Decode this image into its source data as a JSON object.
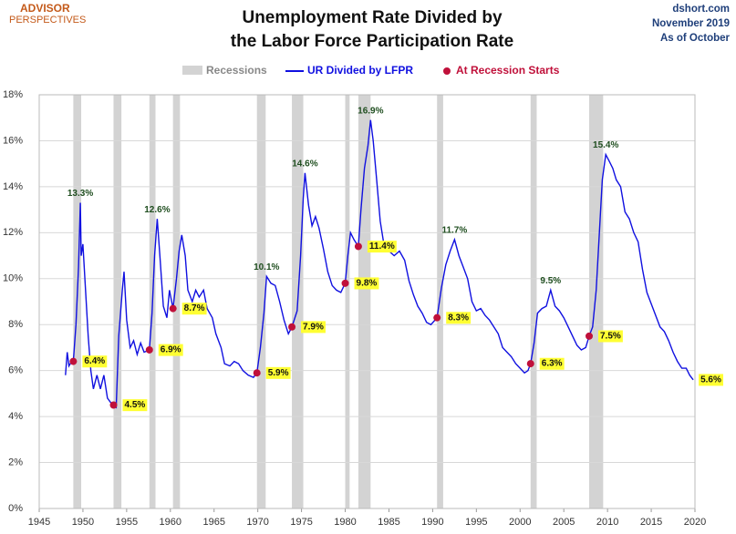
{
  "logo": [
    "ADVISOR",
    "PERSPECTIVES"
  ],
  "source": [
    "dshort.com",
    "November 2019",
    "As of October"
  ],
  "chart_data": {
    "type": "line",
    "title": [
      "Unemployment Rate Divided by",
      "the Labor Force Participation Rate"
    ],
    "xlim": [
      1945,
      2020
    ],
    "xticks": [
      1945,
      1950,
      1955,
      1960,
      1965,
      1970,
      1975,
      1980,
      1985,
      1990,
      1995,
      2000,
      2005,
      2010,
      2015,
      2020
    ],
    "ylim": [
      0,
      18
    ],
    "yticks": [
      {
        "value": 0,
        "label": "0%"
      },
      {
        "value": 2,
        "label": "2%"
      },
      {
        "value": 4,
        "label": "4%"
      },
      {
        "value": 6,
        "label": "6%"
      },
      {
        "value": 8,
        "label": "8%"
      },
      {
        "value": 10,
        "label": "10%"
      },
      {
        "value": 12,
        "label": "12%"
      },
      {
        "value": 14,
        "label": "14%"
      },
      {
        "value": 16,
        "label": "16%"
      },
      {
        "value": 18,
        "label": "18%"
      }
    ],
    "grid": true,
    "recessions": {
      "name": "Recessions",
      "color": "#d3d3d3",
      "periods": [
        [
          1948.9,
          1949.8
        ],
        [
          1953.5,
          1954.4
        ],
        [
          1957.6,
          1958.3
        ],
        [
          1960.3,
          1961.1
        ],
        [
          1969.9,
          1970.9
        ],
        [
          1973.9,
          1975.2
        ],
        [
          1980.0,
          1980.5
        ],
        [
          1981.5,
          1982.9
        ],
        [
          1990.5,
          1991.2
        ],
        [
          2001.2,
          2001.9
        ],
        [
          2007.9,
          2009.5
        ]
      ]
    },
    "series": [
      {
        "name": "UR Divided by LFPR",
        "color": "#1010e0",
        "x": [
          1948.0,
          1948.2,
          1948.4,
          1948.7,
          1948.9,
          1949.2,
          1949.5,
          1949.7,
          1949.8,
          1950.0,
          1950.3,
          1950.6,
          1950.9,
          1951.2,
          1951.6,
          1952.0,
          1952.4,
          1952.8,
          1953.2,
          1953.5,
          1953.8,
          1954.1,
          1954.5,
          1954.7,
          1955.0,
          1955.4,
          1955.8,
          1956.2,
          1956.6,
          1957.0,
          1957.6,
          1957.9,
          1958.2,
          1958.5,
          1958.8,
          1959.2,
          1959.6,
          1959.9,
          1960.3,
          1960.7,
          1961.0,
          1961.3,
          1961.7,
          1962.0,
          1962.5,
          1962.9,
          1963.3,
          1963.8,
          1964.2,
          1964.8,
          1965.2,
          1965.8,
          1966.2,
          1966.8,
          1967.3,
          1967.8,
          1968.3,
          1968.9,
          1969.5,
          1969.9,
          1970.3,
          1970.7,
          1971.0,
          1971.5,
          1972.0,
          1972.5,
          1973.0,
          1973.5,
          1973.9,
          1974.5,
          1974.9,
          1975.2,
          1975.4,
          1975.8,
          1976.2,
          1976.6,
          1977.0,
          1977.5,
          1978.0,
          1978.5,
          1979.0,
          1979.5,
          1980.0,
          1980.3,
          1980.6,
          1981.0,
          1981.5,
          1981.8,
          1982.2,
          1982.6,
          1982.9,
          1983.2,
          1983.6,
          1984.0,
          1984.5,
          1985.0,
          1985.6,
          1986.2,
          1986.8,
          1987.3,
          1987.8,
          1988.3,
          1988.8,
          1989.3,
          1989.8,
          1990.5,
          1991.0,
          1991.5,
          1992.0,
          1992.5,
          1993.0,
          1993.5,
          1994.0,
          1994.5,
          1995.0,
          1995.5,
          1996.0,
          1996.5,
          1997.0,
          1997.5,
          1998.0,
          1998.5,
          1999.0,
          1999.5,
          2000.0,
          2000.5,
          2000.9,
          2001.2,
          2001.6,
          2002.0,
          2002.5,
          2003.0,
          2003.5,
          2004.0,
          2004.5,
          2005.0,
          2005.5,
          2006.0,
          2006.5,
          2007.0,
          2007.5,
          2007.9,
          2008.3,
          2008.7,
          2009.0,
          2009.4,
          2009.8,
          2010.2,
          2010.6,
          2011.0,
          2011.5,
          2012.0,
          2012.5,
          2013.0,
          2013.5,
          2014.0,
          2014.5,
          2015.0,
          2015.5,
          2016.0,
          2016.5,
          2017.0,
          2017.5,
          2018.0,
          2018.5,
          2019.0,
          2019.4,
          2019.8
        ],
        "values": [
          5.8,
          6.8,
          6.2,
          6.4,
          6.4,
          8.0,
          10.5,
          13.3,
          11.0,
          11.5,
          9.5,
          7.5,
          6.0,
          5.2,
          5.8,
          5.2,
          5.8,
          4.8,
          4.6,
          4.5,
          4.4,
          7.5,
          9.5,
          10.3,
          8.2,
          7.0,
          7.3,
          6.7,
          7.2,
          6.8,
          6.9,
          8.5,
          11.0,
          12.6,
          11.0,
          8.8,
          8.3,
          9.5,
          8.7,
          10.0,
          11.2,
          11.9,
          11.0,
          9.5,
          9.0,
          9.5,
          9.2,
          9.5,
          8.7,
          8.3,
          7.6,
          7.0,
          6.3,
          6.2,
          6.4,
          6.3,
          6.0,
          5.8,
          5.7,
          5.9,
          7.0,
          8.5,
          10.1,
          9.8,
          9.7,
          9.0,
          8.2,
          7.6,
          7.9,
          8.6,
          11.0,
          13.5,
          14.6,
          13.2,
          12.3,
          12.7,
          12.2,
          11.3,
          10.3,
          9.7,
          9.5,
          9.4,
          9.8,
          11.0,
          12.0,
          11.7,
          11.4,
          13.0,
          14.8,
          15.8,
          16.9,
          16.0,
          14.3,
          12.5,
          11.3,
          11.2,
          11.0,
          11.2,
          10.8,
          9.9,
          9.3,
          8.8,
          8.5,
          8.1,
          8.0,
          8.3,
          9.6,
          10.6,
          11.2,
          11.7,
          11.0,
          10.5,
          10.0,
          9.0,
          8.6,
          8.7,
          8.4,
          8.2,
          7.9,
          7.6,
          7.0,
          6.8,
          6.6,
          6.3,
          6.1,
          5.9,
          6.0,
          6.3,
          7.2,
          8.5,
          8.7,
          8.8,
          9.5,
          8.8,
          8.6,
          8.3,
          7.9,
          7.5,
          7.1,
          6.9,
          7.0,
          7.5,
          7.9,
          9.5,
          11.5,
          14.3,
          15.4,
          15.1,
          14.8,
          14.3,
          14.0,
          12.9,
          12.6,
          12.0,
          11.6,
          10.4,
          9.4,
          8.9,
          8.4,
          7.9,
          7.7,
          7.3,
          6.8,
          6.4,
          6.1,
          6.1,
          5.8,
          5.6
        ]
      },
      {
        "name": "At Recession Starts",
        "color": "#c0103a",
        "x": [
          1948.9,
          1953.5,
          1957.6,
          1960.3,
          1969.9,
          1973.9,
          1980.0,
          1981.5,
          1990.5,
          2001.2,
          2007.9
        ],
        "values": [
          6.4,
          4.5,
          6.9,
          8.7,
          5.9,
          7.9,
          9.8,
          11.4,
          8.3,
          6.3,
          7.5
        ],
        "value_labels": [
          "6.4%",
          "4.5%",
          "6.9%",
          "8.7%",
          "5.9%",
          "7.9%",
          "9.8%",
          "11.4%",
          "8.3%",
          "6.3%",
          "7.5%"
        ]
      }
    ],
    "annotations": [
      {
        "x": 1949.7,
        "value": 13.3,
        "label": "13.3%",
        "style": "peak"
      },
      {
        "x": 1958.5,
        "value": 12.6,
        "label": "12.6%",
        "style": "peak"
      },
      {
        "x": 1971.0,
        "value": 10.1,
        "label": "10.1%",
        "style": "peak"
      },
      {
        "x": 1975.4,
        "value": 14.6,
        "label": "14.6%",
        "style": "peak"
      },
      {
        "x": 1982.9,
        "value": 16.9,
        "label": "16.9%",
        "style": "peak"
      },
      {
        "x": 1992.5,
        "value": 11.7,
        "label": "11.7%",
        "style": "peak"
      },
      {
        "x": 2003.5,
        "value": 9.5,
        "label": "9.5%",
        "style": "peak"
      },
      {
        "x": 2009.8,
        "value": 15.4,
        "label": "15.4%",
        "style": "peak"
      },
      {
        "x": 2019.8,
        "value": 5.6,
        "label": "5.6%",
        "style": "highlight"
      }
    ]
  }
}
